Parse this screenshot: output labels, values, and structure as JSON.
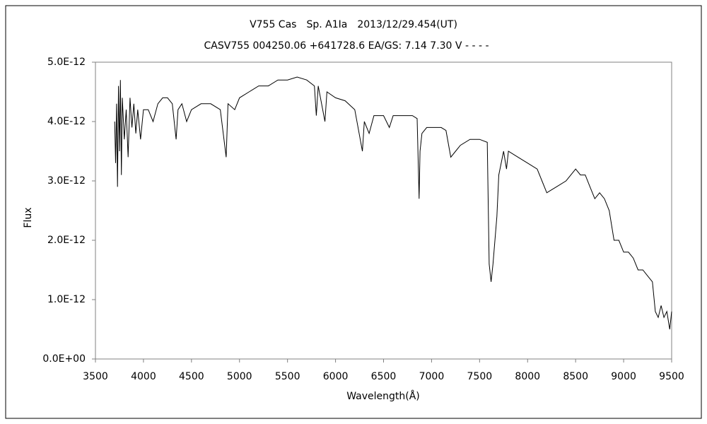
{
  "chart_data": {
    "type": "line",
    "title": "V755 Cas　Sp. A1Ⅰa　2013/12/29.454(UT)",
    "subtitle": "CASV755 004250.06 +641728.6 EA/GS: 7.14 7.30 V - - - -",
    "xlabel": "Wavelength(Å)",
    "ylabel": "Flux",
    "xlim": [
      3500,
      9500
    ],
    "xticks": [
      3500,
      4000,
      4500,
      5000,
      5500,
      6000,
      6500,
      7000,
      7500,
      8000,
      8500,
      9000,
      9500
    ],
    "ylim": [
      0,
      5e-12
    ],
    "yticks": [
      {
        "value": 0,
        "label": "0.0E+00"
      },
      {
        "value": 1e-12,
        "label": "1.0E-12"
      },
      {
        "value": 2e-12,
        "label": "2.0E-12"
      },
      {
        "value": 3e-12,
        "label": "3.0E-12"
      },
      {
        "value": 4e-12,
        "label": "4.0E-12"
      },
      {
        "value": 5e-12,
        "label": "5.0E-12"
      }
    ],
    "series": [
      {
        "color": "#000000",
        "x": [
          3700,
          3710,
          3720,
          3730,
          3740,
          3750,
          3760,
          3770,
          3780,
          3800,
          3820,
          3840,
          3860,
          3880,
          3900,
          3920,
          3940,
          3970,
          4000,
          4050,
          4100,
          4150,
          4200,
          4250,
          4300,
          4340,
          4360,
          4400,
          4450,
          4500,
          4600,
          4700,
          4800,
          4861,
          4880,
          4950,
          5000,
          5100,
          5200,
          5300,
          5400,
          5500,
          5600,
          5700,
          5780,
          5800,
          5820,
          5890,
          5910,
          6000,
          6100,
          6200,
          6280,
          6300,
          6350,
          6400,
          6500,
          6560,
          6600,
          6700,
          6800,
          6850,
          6870,
          6880,
          6900,
          6950,
          7000,
          7100,
          7150,
          7200,
          7250,
          7300,
          7400,
          7500,
          7580,
          7600,
          7620,
          7640,
          7680,
          7700,
          7750,
          7780,
          7800,
          7900,
          8000,
          8100,
          8150,
          8200,
          8250,
          8300,
          8400,
          8500,
          8550,
          8600,
          8650,
          8700,
          8750,
          8800,
          8850,
          8900,
          8950,
          9000,
          9050,
          9100,
          9150,
          9200,
          9250,
          9300,
          9330,
          9360,
          9390,
          9420,
          9450,
          9480,
          9500
        ],
        "values": [
          4e-12,
          3.3e-12,
          4.3e-12,
          2.9e-12,
          4.6e-12,
          3.5e-12,
          4.7e-12,
          3.1e-12,
          4.4e-12,
          3.7e-12,
          4.2e-12,
          3.4e-12,
          4.4e-12,
          3.9e-12,
          4.3e-12,
          3.8e-12,
          4.2e-12,
          3.7e-12,
          4.2e-12,
          4.2e-12,
          4e-12,
          4.3e-12,
          4.4e-12,
          4.4e-12,
          4.3e-12,
          3.7e-12,
          4.2e-12,
          4.3e-12,
          4e-12,
          4.2e-12,
          4.3e-12,
          4.3e-12,
          4.2e-12,
          3.4e-12,
          4.3e-12,
          4.2e-12,
          4.4e-12,
          4.5e-12,
          4.6e-12,
          4.6e-12,
          4.7e-12,
          4.7e-12,
          4.75e-12,
          4.7e-12,
          4.6e-12,
          4.1e-12,
          4.6e-12,
          4e-12,
          4.5e-12,
          4.4e-12,
          4.35e-12,
          4.2e-12,
          3.5e-12,
          4e-12,
          3.8e-12,
          4.1e-12,
          4.1e-12,
          3.9e-12,
          4.1e-12,
          4.1e-12,
          4.1e-12,
          4.05e-12,
          2.7e-12,
          3.5e-12,
          3.8e-12,
          3.9e-12,
          3.9e-12,
          3.9e-12,
          3.85e-12,
          3.4e-12,
          3.5e-12,
          3.6e-12,
          3.7e-12,
          3.7e-12,
          3.65e-12,
          1.6e-12,
          1.3e-12,
          1.6e-12,
          2.4e-12,
          3.1e-12,
          3.5e-12,
          3.2e-12,
          3.5e-12,
          3.4e-12,
          3.3e-12,
          3.2e-12,
          3e-12,
          2.8e-12,
          2.85e-12,
          2.9e-12,
          3e-12,
          3.2e-12,
          3.1e-12,
          3.1e-12,
          2.9e-12,
          2.7e-12,
          2.8e-12,
          2.7e-12,
          2.5e-12,
          2e-12,
          2e-12,
          1.8e-12,
          1.8e-12,
          1.7e-12,
          1.5e-12,
          1.5e-12,
          1.4e-12,
          1.3e-12,
          8e-13,
          7e-13,
          9e-13,
          7e-13,
          8e-13,
          5e-13,
          8e-13
        ]
      }
    ]
  }
}
